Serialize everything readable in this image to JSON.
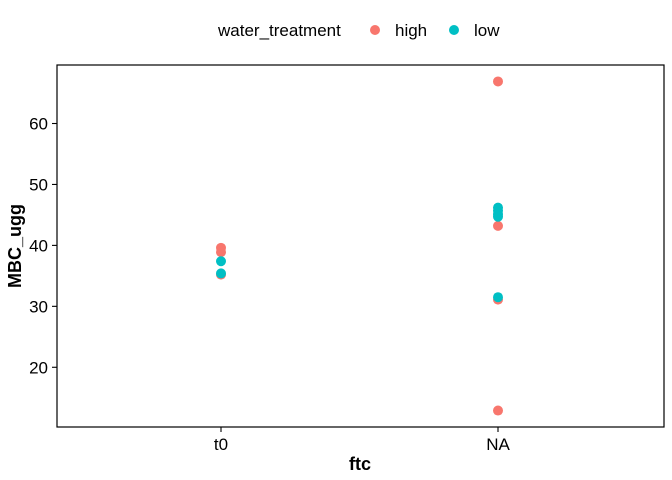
{
  "chart_data": {
    "type": "scatter",
    "xlabel": "ftc",
    "ylabel": "MBC_ugg",
    "x_categories": [
      "t0",
      "NA"
    ],
    "yticks": [
      20,
      30,
      40,
      50,
      60
    ],
    "ylim": [
      10.2,
      69.6
    ],
    "grid": false,
    "legend": {
      "title": "water_treatment",
      "position": "top"
    },
    "series": [
      {
        "name": "high",
        "color": "#F8766D",
        "points": [
          {
            "x": "t0",
            "y": 39.6
          },
          {
            "x": "t0",
            "y": 38.9
          },
          {
            "x": "t0",
            "y": 35.2
          },
          {
            "x": "NA",
            "y": 66.9
          },
          {
            "x": "NA",
            "y": 43.2
          },
          {
            "x": "NA",
            "y": 31.1
          },
          {
            "x": "NA",
            "y": 12.9
          }
        ]
      },
      {
        "name": "low",
        "color": "#00BFC4",
        "points": [
          {
            "x": "t0",
            "y": 37.4
          },
          {
            "x": "t0",
            "y": 35.4
          },
          {
            "x": "NA",
            "y": 46.2
          },
          {
            "x": "NA",
            "y": 45.7
          },
          {
            "x": "NA",
            "y": 45.1
          },
          {
            "x": "NA",
            "y": 44.7
          },
          {
            "x": "NA",
            "y": 31.5
          }
        ]
      }
    ]
  }
}
